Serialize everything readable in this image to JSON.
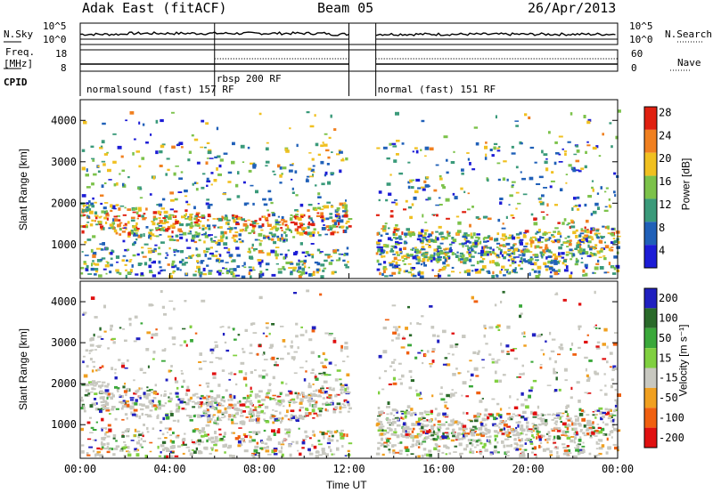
{
  "header": {
    "station": "Adak East (fitACF)",
    "beam": "Beam 05",
    "date": "26/Apr/2013"
  },
  "summary_labels": {
    "nsky": "N.Sky",
    "freq_line1": "Freq.",
    "freq_line2": "[MHz]",
    "cpid": "CPID",
    "nsearch": "N.Search",
    "nave": "Nave",
    "nsky_ticks": [
      "10^5",
      "10^0"
    ],
    "nsearch_ticks": [
      "10^5",
      "10^0"
    ],
    "freq_ticks": [
      "18",
      "8"
    ],
    "nave_ticks": [
      "60",
      "0"
    ]
  },
  "cpid_labels": [
    {
      "text": "normalsound (fast) 157 RF",
      "hour": 0.2
    },
    {
      "text": "rbsp 200 RF",
      "hour": 6.0
    },
    {
      "text": "normal (fast) 151 RF",
      "hour": 13.2
    }
  ],
  "chart_data": [
    {
      "type": "heatmap",
      "name": "power",
      "ylabel": "Slant Range [km]",
      "xlabel": "",
      "ylim": [
        180,
        4500
      ],
      "yticks": [
        "1000",
        "2000",
        "3000",
        "4000"
      ],
      "ytick_values": [
        1000,
        2000,
        3000,
        4000
      ],
      "colorbar_label": "Power [dB]",
      "colorbar_ticks": [
        "4",
        "8",
        "12",
        "16",
        "20",
        "24",
        "28"
      ],
      "colorbar_colors": [
        "#1c1cd6",
        "#2060b8",
        "#3a9a7a",
        "#7cc24a",
        "#f0c020",
        "#f08020",
        "#e02010"
      ],
      "data_gap_hours": [
        12.0,
        13.2
      ]
    },
    {
      "type": "heatmap",
      "name": "velocity",
      "ylabel": "Slant Range [km]",
      "xlabel": "Time UT",
      "ylim": [
        180,
        4500
      ],
      "yticks": [
        "1000",
        "2000",
        "3000",
        "4000"
      ],
      "ytick_values": [
        1000,
        2000,
        3000,
        4000
      ],
      "xlim_hours": [
        0,
        24
      ],
      "xticks": [
        "00:00",
        "04:00",
        "08:00",
        "12:00",
        "16:00",
        "20:00",
        "00:00"
      ],
      "colorbar_label": "Velocity [m s⁻¹]",
      "colorbar_ticks": [
        "200",
        "100",
        "50",
        "15",
        "-15",
        "-50",
        "-100",
        "-200"
      ],
      "colorbar_colors": [
        "#2020c0",
        "#2a6a2a",
        "#3aa83a",
        "#80d040",
        "#c8c8c0",
        "#f0a020",
        "#f06010",
        "#e01010"
      ],
      "data_gap_hours": [
        12.0,
        13.2
      ]
    }
  ]
}
